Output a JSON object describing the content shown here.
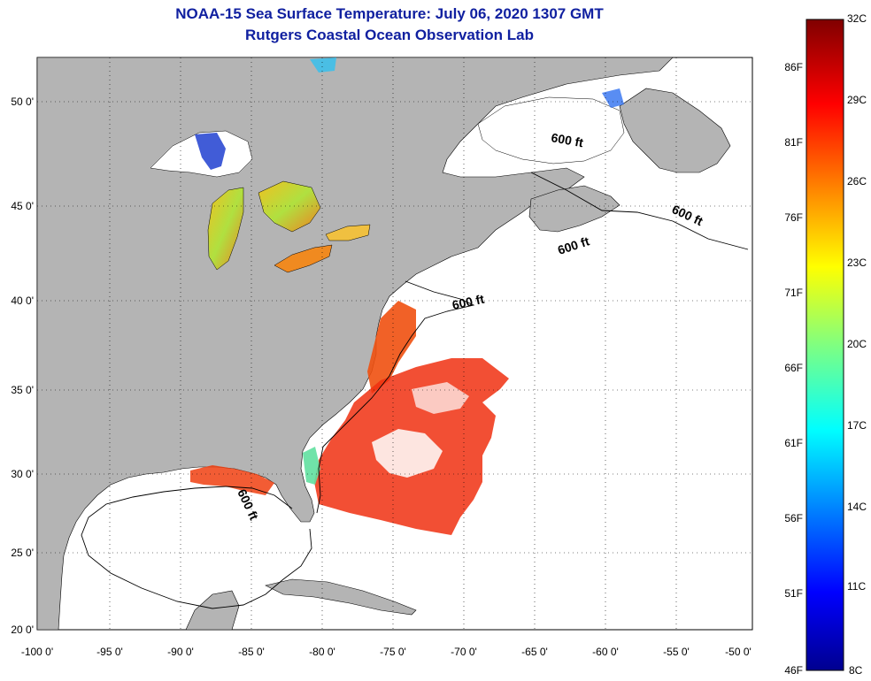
{
  "title": "NOAA-15 Sea Surface Temperature:  July 06, 2020 1307 GMT",
  "subtitle": "Rutgers Coastal Ocean Observation Lab",
  "x_ticks": [
    "-100 0'",
    "-95 0'",
    "-90 0'",
    "-85 0'",
    "-80 0'",
    "-75 0'",
    "-70 0'",
    "-65 0'",
    "-60 0'",
    "-55 0'",
    "-50 0'"
  ],
  "y_ticks": [
    "50 0'",
    "45 0'",
    "40 0'",
    "35 0'",
    "30 0'",
    "25 0'",
    "20 0'"
  ],
  "contour_labels": [
    "600 ft",
    "600 ft",
    "600 ft",
    "600 ft",
    "600 ft"
  ],
  "colorbar": {
    "celsius": [
      "32C",
      "29C",
      "26C",
      "23C",
      "20C",
      "17C",
      "14C",
      "11C",
      "8C"
    ],
    "fahrenheit": [
      "86F",
      "81F",
      "76F",
      "71F",
      "66F",
      "61F",
      "56F",
      "51F",
      "46F"
    ]
  },
  "colors": {
    "land": "#b4b4b4",
    "ocean": "#ffffff",
    "title": "#1020a0"
  }
}
